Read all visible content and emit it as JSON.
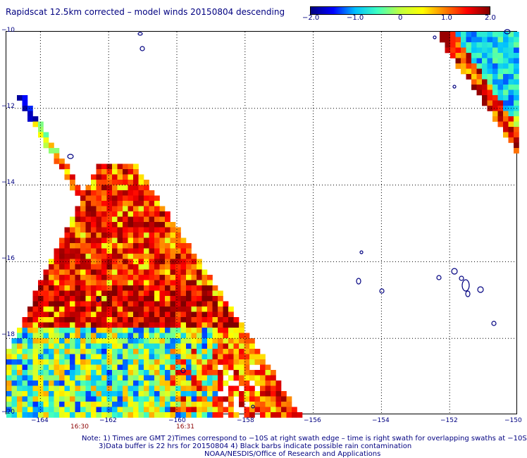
{
  "title": "Rapidscat 12.5km corrected – model winds 20150804 descending",
  "colorbar": {
    "ticks": [
      "−2.0",
      "−1.0",
      "0",
      "1.0",
      "2.0"
    ],
    "tick_values": [
      -2.0,
      -1.0,
      0,
      1.0,
      2.0
    ],
    "range": [
      -2.0,
      2.0
    ],
    "colors": [
      "#00007f",
      "#0000ff",
      "#00c0ff",
      "#40ffc0",
      "#c0ff40",
      "#ffff00",
      "#ff8000",
      "#ff0000",
      "#800000"
    ]
  },
  "map": {
    "x_ticks": [
      "−164",
      "−162",
      "−160",
      "−158",
      "−156",
      "−154",
      "−152",
      "−150"
    ],
    "x_tick_values": [
      -164,
      -162,
      -160,
      -158,
      -156,
      -154,
      -152,
      -150
    ],
    "y_ticks": [
      "−10",
      "−12",
      "−14",
      "−16",
      "−18",
      "−20"
    ],
    "y_tick_values": [
      -10,
      -12,
      -14,
      -16,
      -18,
      -20
    ],
    "lon_range": [
      -165,
      -150
    ],
    "lat_range": [
      -20,
      -10
    ],
    "gridlines": true,
    "time_labels": [
      {
        "text": "16:30",
        "lon": -163.2
      },
      {
        "text": "16:31",
        "lon": -160.4
      }
    ]
  },
  "notes": [
    "Note: 1) Times are GMT 2)Times correspond to −10S at right swath edge – time is right swath for overlapping swaths at −10S",
    "3)Data buffer is 22 hrs for 20150804 4) Black barbs indicate possible rain contamination",
    "NOAA/NESDIS/Office of Research and Applications"
  ]
}
